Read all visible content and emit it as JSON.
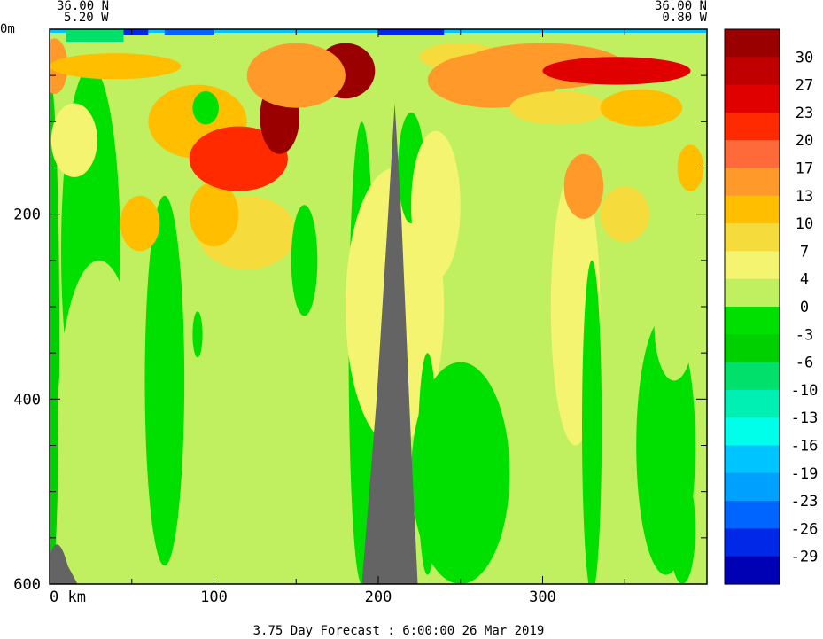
{
  "chart_data": {
    "type": "heatmap",
    "title": "3.75 Day Forecast :  6:00:00  26 Mar 2019",
    "section_start": {
      "lat": "36.00 N",
      "lon": "5.20 W"
    },
    "section_end": {
      "lat": "36.00 N",
      "lon": "0.80 W"
    },
    "x_axis": {
      "unit_label": "0 km",
      "ticks": [
        100,
        200,
        300
      ],
      "range": [
        0,
        400
      ]
    },
    "y_axis": {
      "unit_label": "0m",
      "ticks": [
        200,
        400,
        600
      ],
      "range": [
        0,
        600
      ],
      "inverted": true
    },
    "colorbar": {
      "labels": [
        "30",
        "27",
        "23",
        "20",
        "17",
        "13",
        "10",
        "7",
        "4",
        "0",
        "-3",
        "-6",
        "-10",
        "-13",
        "-16",
        "-19",
        "-23",
        "-26",
        "-29"
      ],
      "colors": [
        "#9a0000",
        "#c00000",
        "#e00000",
        "#ff2a00",
        "#ff6a3a",
        "#ff9a2a",
        "#ffbe00",
        "#f5dc3c",
        "#f4f470",
        "#c0f060",
        "#00e000",
        "#00d000",
        "#00e06a",
        "#00f0b4",
        "#00ffea",
        "#00c4ff",
        "#00a0ff",
        "#0064ff",
        "#0028e6",
        "#0000b4"
      ]
    },
    "bathymetry_color": "#646464",
    "seafloor_peaks": [
      {
        "x_km": 5,
        "top_depth": 550
      },
      {
        "x_km": 210,
        "top_depth": 80
      }
    ],
    "blobs": [
      {
        "x": 0,
        "y": 335,
        "rx": 6,
        "ry": 285,
        "v": -5
      },
      {
        "x": 25,
        "y": 240,
        "rx": 18,
        "ry": 200,
        "v": -3
      },
      {
        "x": 3,
        "y": 40,
        "rx": 8,
        "ry": 30,
        "v": 16
      },
      {
        "x": 15,
        "y": 120,
        "rx": 14,
        "ry": 40,
        "v": 6
      },
      {
        "x": 30,
        "y": 420,
        "rx": 25,
        "ry": 170,
        "v": 3
      },
      {
        "x": 40,
        "y": 40,
        "rx": 40,
        "ry": 14,
        "v": 10
      },
      {
        "x": 70,
        "y": 380,
        "rx": 12,
        "ry": 200,
        "v": -1
      },
      {
        "x": 90,
        "y": 100,
        "rx": 30,
        "ry": 40,
        "v": 12
      },
      {
        "x": 120,
        "y": 220,
        "rx": 30,
        "ry": 40,
        "v": 8
      },
      {
        "x": 55,
        "y": 210,
        "rx": 12,
        "ry": 30,
        "v": 10
      },
      {
        "x": 100,
        "y": 200,
        "rx": 15,
        "ry": 35,
        "v": 10
      },
      {
        "x": 95,
        "y": 85,
        "rx": 8,
        "ry": 18,
        "v": -1
      },
      {
        "x": 90,
        "y": 330,
        "rx": 3,
        "ry": 25,
        "v": -3
      },
      {
        "x": 115,
        "y": 140,
        "rx": 30,
        "ry": 35,
        "v": 20
      },
      {
        "x": 140,
        "y": 95,
        "rx": 12,
        "ry": 40,
        "v": 30
      },
      {
        "x": 160,
        "y": 50,
        "rx": 12,
        "ry": 30,
        "v": 20
      },
      {
        "x": 180,
        "y": 45,
        "rx": 18,
        "ry": 30,
        "v": 30
      },
      {
        "x": 150,
        "y": 50,
        "rx": 30,
        "ry": 35,
        "v": 14
      },
      {
        "x": 155,
        "y": 250,
        "rx": 8,
        "ry": 60,
        "v": -3
      },
      {
        "x": 190,
        "y": 250,
        "rx": 25,
        "ry": 60,
        "v": 2
      },
      {
        "x": 190,
        "y": 350,
        "rx": 8,
        "ry": 250,
        "v": -3
      },
      {
        "x": 210,
        "y": 300,
        "rx": 30,
        "ry": 150,
        "v": 6
      },
      {
        "x": 220,
        "y": 150,
        "rx": 8,
        "ry": 60,
        "v": -3
      },
      {
        "x": 235,
        "y": 190,
        "rx": 15,
        "ry": 80,
        "v": 5
      },
      {
        "x": 250,
        "y": 30,
        "rx": 25,
        "ry": 15,
        "v": 8
      },
      {
        "x": 250,
        "y": 480,
        "rx": 30,
        "ry": 120,
        "v": -3
      },
      {
        "x": 230,
        "y": 470,
        "rx": 6,
        "ry": 120,
        "v": -3
      },
      {
        "x": 270,
        "y": 55,
        "rx": 40,
        "ry": 30,
        "v": 15
      },
      {
        "x": 300,
        "y": 40,
        "rx": 50,
        "ry": 25,
        "v": 14
      },
      {
        "x": 310,
        "y": 85,
        "rx": 30,
        "ry": 18,
        "v": 7
      },
      {
        "x": 320,
        "y": 300,
        "rx": 15,
        "ry": 150,
        "v": 6
      },
      {
        "x": 325,
        "y": 170,
        "rx": 12,
        "ry": 35,
        "v": 15
      },
      {
        "x": 330,
        "y": 430,
        "rx": 6,
        "ry": 180,
        "v": -3
      },
      {
        "x": 345,
        "y": 45,
        "rx": 45,
        "ry": 15,
        "v": 24
      },
      {
        "x": 350,
        "y": 200,
        "rx": 15,
        "ry": 30,
        "v": 8
      },
      {
        "x": 360,
        "y": 85,
        "rx": 25,
        "ry": 20,
        "v": 12
      },
      {
        "x": 375,
        "y": 450,
        "rx": 18,
        "ry": 140,
        "v": -3
      },
      {
        "x": 380,
        "y": 320,
        "rx": 12,
        "ry": 60,
        "v": 1
      },
      {
        "x": 390,
        "y": 150,
        "rx": 8,
        "ry": 25,
        "v": 10
      },
      {
        "x": 385,
        "y": 540,
        "rx": 8,
        "ry": 60,
        "v": -1
      }
    ]
  }
}
